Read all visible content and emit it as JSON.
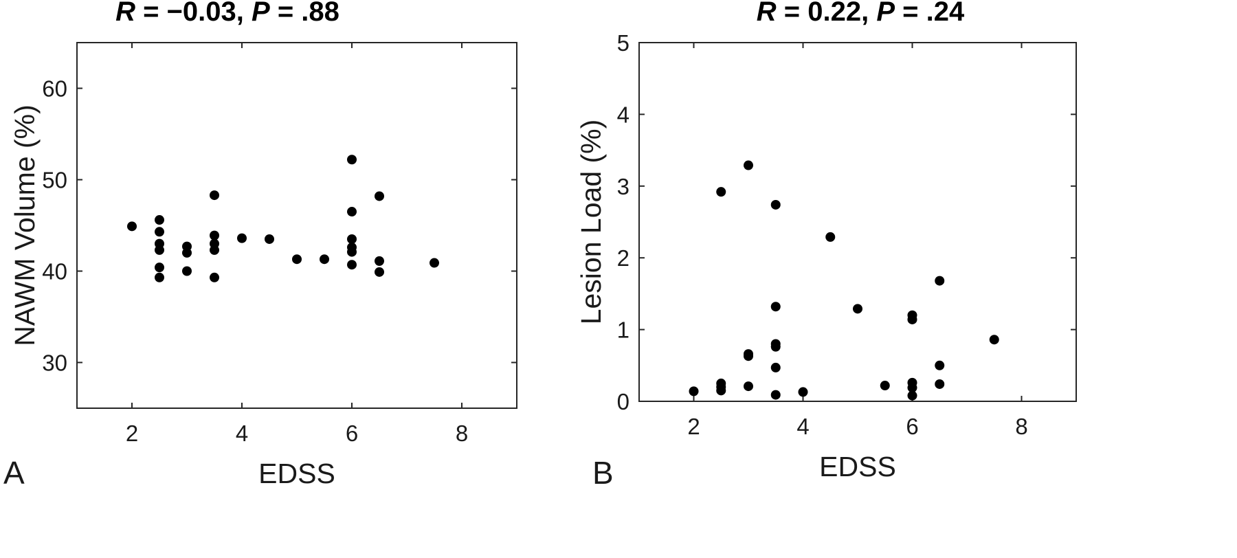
{
  "chart_data": [
    {
      "type": "scatter",
      "panel_label": "A",
      "title": {
        "r_symbol": "R",
        "r_text": " = −0.03, ",
        "p_symbol": "P",
        "p_text": " = .88"
      },
      "xlabel": "EDSS",
      "ylabel": "NAWM Volume (%)",
      "xlim": [
        1,
        9
      ],
      "ylim": [
        25,
        65
      ],
      "xticks": [
        2,
        4,
        6,
        8
      ],
      "yticks": [
        30,
        40,
        50,
        60
      ],
      "grid": false,
      "legend": null,
      "marker_color": "#000000",
      "points": [
        [
          2.0,
          44.9
        ],
        [
          2.5,
          45.6
        ],
        [
          2.5,
          44.3
        ],
        [
          2.5,
          43.0
        ],
        [
          2.5,
          42.3
        ],
        [
          2.5,
          40.4
        ],
        [
          2.5,
          39.3
        ],
        [
          3.0,
          42.7
        ],
        [
          3.0,
          42.0
        ],
        [
          3.0,
          40.0
        ],
        [
          3.5,
          48.3
        ],
        [
          3.5,
          43.9
        ],
        [
          3.5,
          43.0
        ],
        [
          3.5,
          42.3
        ],
        [
          3.5,
          39.3
        ],
        [
          4.0,
          43.6
        ],
        [
          4.5,
          43.5
        ],
        [
          5.0,
          41.3
        ],
        [
          5.5,
          41.3
        ],
        [
          6.0,
          52.2
        ],
        [
          6.0,
          46.5
        ],
        [
          6.0,
          43.5
        ],
        [
          6.0,
          42.6
        ],
        [
          6.0,
          42.1
        ],
        [
          6.0,
          40.7
        ],
        [
          6.5,
          48.2
        ],
        [
          6.5,
          41.1
        ],
        [
          6.5,
          39.9
        ],
        [
          7.5,
          40.9
        ]
      ]
    },
    {
      "type": "scatter",
      "panel_label": "B",
      "title": {
        "r_symbol": "R",
        "r_text": " = 0.22, ",
        "p_symbol": "P",
        "p_text": " = .24"
      },
      "xlabel": "EDSS",
      "ylabel": "Lesion Load (%)",
      "xlim": [
        1,
        9
      ],
      "ylim": [
        0,
        5
      ],
      "xticks": [
        2,
        4,
        6,
        8
      ],
      "yticks": [
        0,
        1,
        2,
        3,
        4,
        5
      ],
      "grid": false,
      "legend": null,
      "marker_color": "#000000",
      "points": [
        [
          2.0,
          0.14
        ],
        [
          2.5,
          2.92
        ],
        [
          2.5,
          0.25
        ],
        [
          2.5,
          0.2
        ],
        [
          2.5,
          0.15
        ],
        [
          3.0,
          3.29
        ],
        [
          3.0,
          0.66
        ],
        [
          3.0,
          0.63
        ],
        [
          3.0,
          0.21
        ],
        [
          3.5,
          2.74
        ],
        [
          3.5,
          1.32
        ],
        [
          3.5,
          0.8
        ],
        [
          3.5,
          0.76
        ],
        [
          3.5,
          0.47
        ],
        [
          3.5,
          0.09
        ],
        [
          4.0,
          0.13
        ],
        [
          4.5,
          2.29
        ],
        [
          5.0,
          1.29
        ],
        [
          5.5,
          0.22
        ],
        [
          6.0,
          1.2
        ],
        [
          6.0,
          1.14
        ],
        [
          6.0,
          0.26
        ],
        [
          6.0,
          0.19
        ],
        [
          6.0,
          0.08
        ],
        [
          6.5,
          1.68
        ],
        [
          6.5,
          0.5
        ],
        [
          6.5,
          0.24
        ],
        [
          7.5,
          0.86
        ]
      ]
    }
  ]
}
